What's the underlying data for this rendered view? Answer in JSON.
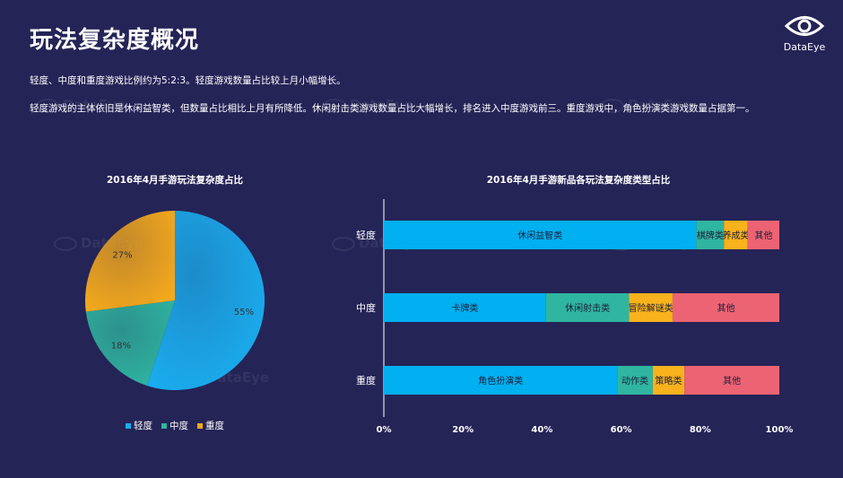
{
  "page": {
    "title": "玩法复杂度概况",
    "logo_text": "DataEye",
    "watermark_text": "DataEye",
    "paragraph1": "轻度、中度和重度游戏比例约为5:2:3。轻度游戏数量占比较上月小幅增长。",
    "paragraph2": "轻度游戏的主体依旧是休闲益智类，但数量占比相比上月有所降低。休闲射击类游戏数量占比大幅增长，排名进入中度游戏前三。重度游戏中，角色扮演类游戏数量占据第一。"
  },
  "chart_data": [
    {
      "type": "pie",
      "title": "2016年4月手游玩法复杂度占比",
      "slices": [
        {
          "name": "轻度",
          "value": 55,
          "label": "55%",
          "color": "#1aaef0"
        },
        {
          "name": "中度",
          "value": 18,
          "label": "18%",
          "color": "#2fb5a0"
        },
        {
          "name": "重度",
          "value": 27,
          "label": "27%",
          "color": "#f5a91c"
        }
      ],
      "legend": [
        "轻度",
        "中度",
        "重度"
      ],
      "legend_position": "bottom"
    },
    {
      "type": "bar",
      "orientation": "horizontal",
      "stacked": "percent",
      "title": "2016年4月手游新品各玩法复杂度类型占比",
      "categories": [
        "轻度",
        "中度",
        "重度"
      ],
      "xlim": [
        0,
        100
      ],
      "xticks": [
        "0%",
        "20%",
        "40%",
        "60%",
        "80%",
        "100%"
      ],
      "rows": [
        {
          "category": "轻度",
          "segments": [
            {
              "label": "休闲益智类",
              "value": 79,
              "color": "#00b0f0"
            },
            {
              "label": "棋牌类",
              "value": 7,
              "color": "#2fb5a0"
            },
            {
              "label": "养成类",
              "value": 6,
              "color": "#f7b21c"
            },
            {
              "label": "其他",
              "value": 8,
              "color": "#ec6373"
            }
          ]
        },
        {
          "category": "中度",
          "segments": [
            {
              "label": "卡牌类",
              "value": 41,
              "color": "#00b0f0"
            },
            {
              "label": "休闲射击类",
              "value": 21,
              "color": "#2fb5a0"
            },
            {
              "label": "冒险解谜类",
              "value": 11,
              "color": "#f7b21c"
            },
            {
              "label": "其他",
              "value": 27,
              "color": "#ec6373"
            }
          ]
        },
        {
          "category": "重度",
          "segments": [
            {
              "label": "角色扮演类",
              "value": 59,
              "color": "#00b0f0"
            },
            {
              "label": "动作类",
              "value": 9,
              "color": "#2fb5a0"
            },
            {
              "label": "策略类",
              "value": 8,
              "color": "#f7b21c"
            },
            {
              "label": "其他",
              "value": 24,
              "color": "#ec6373"
            }
          ]
        }
      ]
    }
  ]
}
